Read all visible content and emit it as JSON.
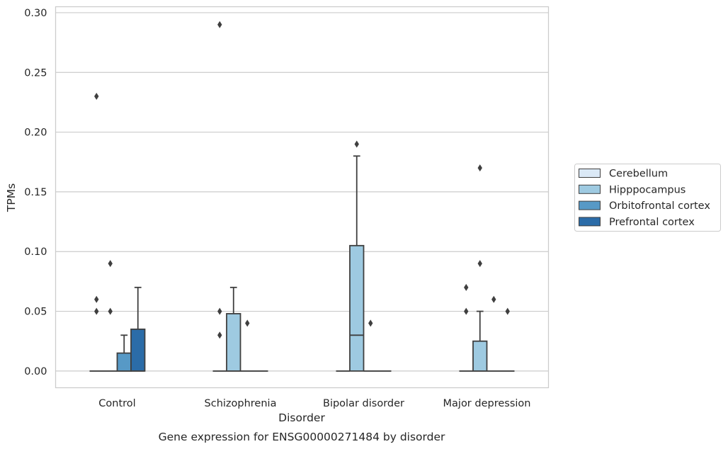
{
  "caption": "Gene expression for ENSG00000271484 by disorder",
  "chart_data": {
    "type": "box",
    "title": "",
    "xlabel": "Disorder",
    "ylabel": "TPMs",
    "ylim": [
      -0.014,
      0.305
    ],
    "yticks": [
      0.0,
      0.05,
      0.1,
      0.15,
      0.2,
      0.25,
      0.3
    ],
    "ytick_labels": [
      "0.00",
      "0.05",
      "0.10",
      "0.15",
      "0.20",
      "0.25",
      "0.30"
    ],
    "grid": true,
    "legend_position": "right",
    "categories": [
      "Control",
      "Schizophrenia",
      "Bipolar disorder",
      "Major depression"
    ],
    "series": [
      {
        "name": "Cerebellum",
        "color": "#dbe9f6",
        "boxes": [
          {
            "q1": 0,
            "median": 0,
            "q3": 0,
            "whislo": 0,
            "whishi": 0,
            "fliers": [
              0.05,
              0.06,
              0.23
            ]
          },
          {
            "q1": 0,
            "median": 0,
            "q3": 0,
            "whislo": 0,
            "whishi": 0,
            "fliers": [
              0.03,
              0.05,
              0.29
            ]
          },
          {
            "q1": 0,
            "median": 0,
            "q3": 0,
            "whislo": 0,
            "whishi": 0,
            "fliers": []
          },
          {
            "q1": 0,
            "median": 0,
            "q3": 0,
            "whislo": 0,
            "whishi": 0,
            "fliers": [
              0.05,
              0.07
            ]
          }
        ]
      },
      {
        "name": "Hipppocampus",
        "color": "#9ecae1",
        "boxes": [
          {
            "q1": 0,
            "median": 0,
            "q3": 0,
            "whislo": 0,
            "whishi": 0,
            "fliers": [
              0.05,
              0.09
            ]
          },
          {
            "q1": 0,
            "median": 0,
            "q3": 0.048,
            "whislo": 0,
            "whishi": 0.07,
            "fliers": []
          },
          {
            "q1": 0,
            "median": 0.03,
            "q3": 0.105,
            "whislo": 0,
            "whishi": 0.18,
            "fliers": [
              0.19
            ]
          },
          {
            "q1": 0,
            "median": 0,
            "q3": 0.025,
            "whislo": 0,
            "whishi": 0.05,
            "fliers": [
              0.09,
              0.17
            ]
          }
        ]
      },
      {
        "name": "Orbitofrontal cortex",
        "color": "#5799c6",
        "boxes": [
          {
            "q1": 0,
            "median": 0,
            "q3": 0.015,
            "whislo": 0,
            "whishi": 0.03,
            "fliers": []
          },
          {
            "q1": 0,
            "median": 0,
            "q3": 0,
            "whislo": 0,
            "whishi": 0,
            "fliers": [
              0.04
            ]
          },
          {
            "q1": 0,
            "median": 0,
            "q3": 0,
            "whislo": 0,
            "whishi": 0,
            "fliers": [
              0.04
            ]
          },
          {
            "q1": 0,
            "median": 0,
            "q3": 0,
            "whislo": 0,
            "whishi": 0,
            "fliers": [
              0.06
            ]
          }
        ]
      },
      {
        "name": "Prefrontal cortex",
        "color": "#2b6ca8",
        "boxes": [
          {
            "q1": 0,
            "median": 0,
            "q3": 0.035,
            "whislo": 0,
            "whishi": 0.07,
            "fliers": []
          },
          {
            "q1": 0,
            "median": 0,
            "q3": 0,
            "whislo": 0,
            "whishi": 0,
            "fliers": []
          },
          {
            "q1": 0,
            "median": 0,
            "q3": 0,
            "whislo": 0,
            "whishi": 0,
            "fliers": []
          },
          {
            "q1": 0,
            "median": 0,
            "q3": 0,
            "whislo": 0,
            "whishi": 0,
            "fliers": [
              0.05
            ]
          }
        ]
      }
    ]
  }
}
